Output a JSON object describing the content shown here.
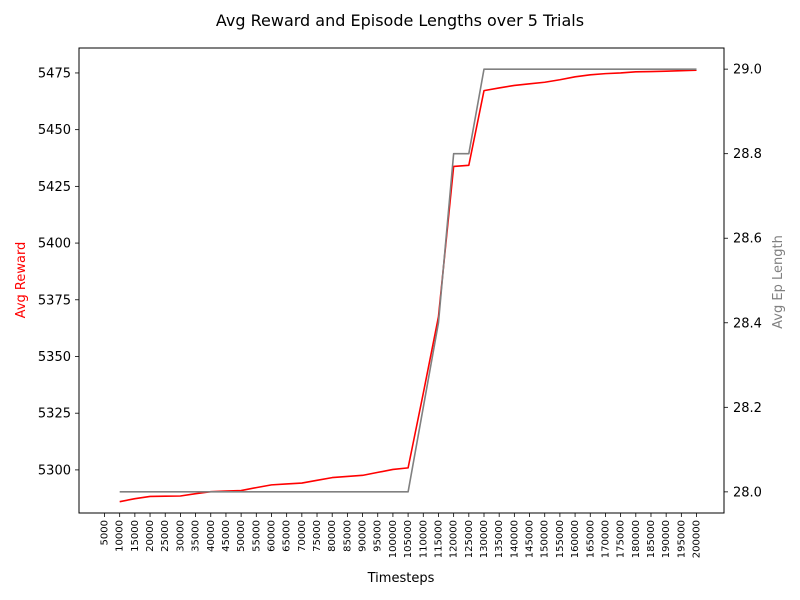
{
  "chart_data": {
    "type": "line",
    "title": "Avg Reward and Episode Lengths over 5 Trials",
    "xlabel": "Timesteps",
    "ylabel_left": "Avg Reward",
    "ylabel_right": "Avg Ep Length",
    "grid": false,
    "x": [
      5000,
      10000,
      15000,
      20000,
      25000,
      30000,
      35000,
      40000,
      45000,
      50000,
      55000,
      60000,
      65000,
      70000,
      75000,
      80000,
      85000,
      90000,
      95000,
      100000,
      105000,
      110000,
      115000,
      120000,
      125000,
      130000,
      135000,
      140000,
      145000,
      150000,
      155000,
      160000,
      165000,
      170000,
      175000,
      180000,
      185000,
      190000,
      195000,
      200000
    ],
    "x_tick_labels": [
      "5000",
      "10000",
      "15000",
      "20000",
      "25000",
      "30000",
      "35000",
      "40000",
      "45000",
      "50000",
      "55000",
      "60000",
      "65000",
      "70000",
      "75000",
      "80000",
      "85000",
      "90000",
      "95000",
      "100000",
      "105000",
      "110000",
      "115000",
      "120000",
      "125000",
      "130000",
      "135000",
      "140000",
      "145000",
      "150000",
      "155000",
      "160000",
      "165000",
      "170000",
      "175000",
      "180000",
      "185000",
      "190000",
      "195000",
      "200000"
    ],
    "y_left_ticks": [
      "5300",
      "5325",
      "5350",
      "5375",
      "5400",
      "5425",
      "5450",
      "5475"
    ],
    "y_left_lim": [
      5281,
      5486
    ],
    "y_right_ticks": [
      "28.0",
      "28.2",
      "28.4",
      "28.6",
      "28.8",
      "29.0"
    ],
    "y_right_lim": [
      27.95,
      29.05
    ],
    "series": [
      {
        "axis": "left",
        "color": "#ff0000",
        "x": [
          10000,
          15000,
          20000,
          25000,
          30000,
          35000,
          40000,
          45000,
          50000,
          55000,
          60000,
          65000,
          70000,
          75000,
          80000,
          85000,
          90000,
          95000,
          100000,
          105000,
          110000,
          115000,
          120000,
          125000,
          130000,
          135000,
          140000,
          145000,
          150000,
          155000,
          160000,
          165000,
          170000,
          175000,
          180000,
          185000,
          190000,
          195000,
          200000
        ],
        "values": [
          5286,
          5287.3,
          5288.3,
          5288.4,
          5288.5,
          5289.5,
          5290.4,
          5290.7,
          5290.9,
          5292.2,
          5293.4,
          5293.8,
          5294.2,
          5295.4,
          5296.6,
          5297.1,
          5297.6,
          5298.9,
          5300.2,
          5300.9,
          5333.8,
          5367.5,
          5433.8,
          5434.3,
          5467.2,
          5468.4,
          5469.5,
          5470.2,
          5470.9,
          5472.0,
          5473.3,
          5474.2,
          5474.7,
          5475.0,
          5475.5,
          5475.6,
          5475.8,
          5476.0,
          5476.2
        ]
      },
      {
        "axis": "right",
        "color": "#808080",
        "x": [
          10000,
          15000,
          20000,
          25000,
          30000,
          35000,
          40000,
          45000,
          50000,
          55000,
          60000,
          65000,
          70000,
          75000,
          80000,
          85000,
          90000,
          95000,
          100000,
          105000,
          110000,
          115000,
          120000,
          125000,
          130000,
          135000,
          140000,
          145000,
          150000,
          155000,
          160000,
          165000,
          170000,
          175000,
          180000,
          185000,
          190000,
          195000,
          200000
        ],
        "values": [
          28.0,
          28.0,
          28.0,
          28.0,
          28.0,
          28.0,
          28.0,
          28.0,
          28.0,
          28.0,
          28.0,
          28.0,
          28.0,
          28.0,
          28.0,
          28.0,
          28.0,
          28.0,
          28.0,
          28.0,
          28.2,
          28.4,
          28.8,
          28.8,
          29.0,
          29.0,
          29.0,
          29.0,
          29.0,
          29.0,
          29.0,
          29.0,
          29.0,
          29.0,
          29.0,
          29.0,
          29.0,
          29.0,
          29.0
        ]
      }
    ]
  }
}
